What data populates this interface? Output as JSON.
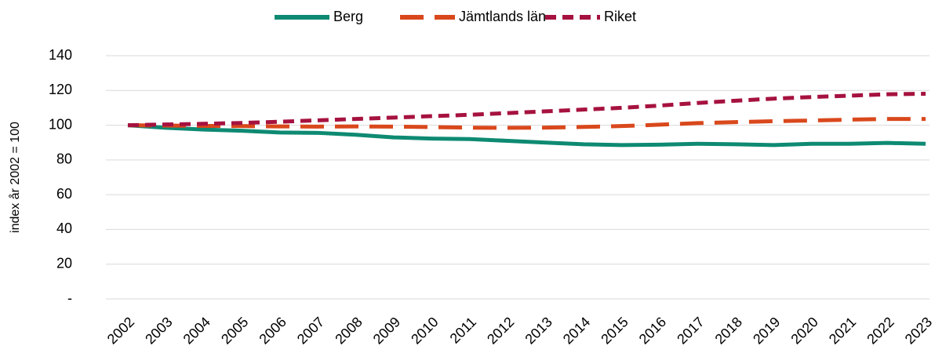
{
  "chart_data": {
    "type": "line",
    "y_label": "index år 2002 = 100",
    "categories": [
      "2002",
      "2003",
      "2004",
      "2005",
      "2006",
      "2007",
      "2008",
      "2009",
      "2010",
      "2011",
      "2012",
      "2013",
      "2014",
      "2015",
      "2016",
      "2017",
      "2018",
      "2019",
      "2020",
      "2021",
      "2022",
      "2023"
    ],
    "series": [
      {
        "name": "Berg",
        "color": "#0e8a72",
        "dash": "solid",
        "values": [
          100,
          98.5,
          97.5,
          96.8,
          95.8,
          95.6,
          94.5,
          93,
          92.3,
          92,
          91,
          90,
          89,
          88.6,
          88.8,
          89.3,
          89,
          88.6,
          89.3,
          89.3,
          89.8,
          89.3
        ]
      },
      {
        "name": "Jämtlands län",
        "color": "#d9481c",
        "dash": "long-dash",
        "values": [
          100,
          99.8,
          99.6,
          99.5,
          99.3,
          99.2,
          99.3,
          99.2,
          98.9,
          98.6,
          98.5,
          98.6,
          99,
          99.5,
          100.3,
          101.2,
          101.8,
          102.3,
          102.7,
          103.2,
          103.6,
          103.6
        ]
      },
      {
        "name": "Riket",
        "color": "#a6123f",
        "dash": "dash",
        "values": [
          100,
          100.4,
          100.8,
          101.3,
          102,
          102.8,
          103.6,
          104.4,
          105.2,
          106,
          107,
          108,
          109,
          110,
          111.3,
          112.8,
          114.1,
          115.3,
          116.2,
          117,
          117.8,
          118.1
        ]
      }
    ],
    "ylim": [
      0,
      140
    ],
    "yticks": [
      {
        "value": 0,
        "label": "-"
      },
      20,
      40,
      60,
      80,
      100,
      120,
      140
    ],
    "grid": true,
    "legend": "top"
  }
}
